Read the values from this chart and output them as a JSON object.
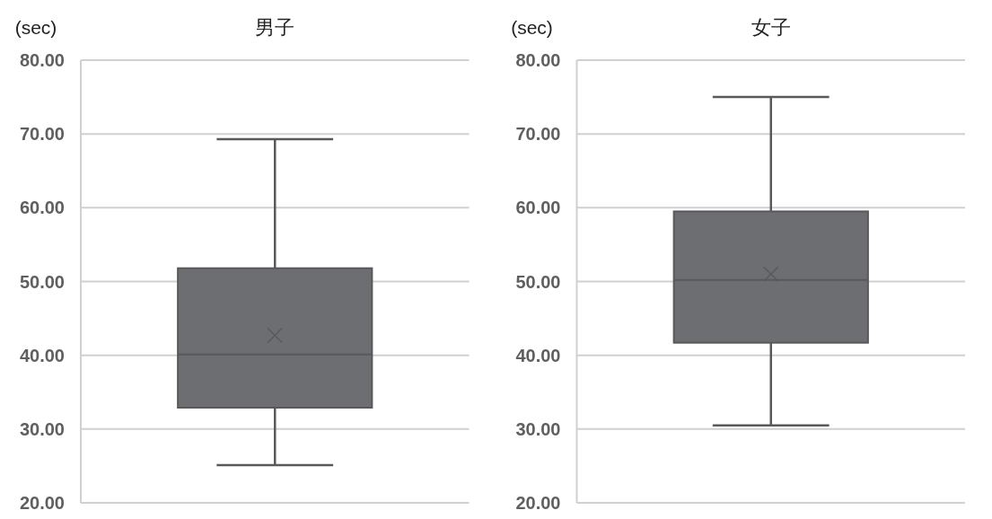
{
  "chart_data": [
    {
      "type": "box",
      "title": "男子",
      "ylabel": "(sec)",
      "categories": [
        null
      ],
      "color": "#6d6e71",
      "grid": "y",
      "ylim": [
        20,
        80
      ],
      "yticks": [
        {
          "value": 20,
          "label": "20.00"
        },
        {
          "value": 30,
          "label": "30.00"
        },
        {
          "value": 40,
          "label": "40.00"
        },
        {
          "value": 50,
          "label": "50.00"
        },
        {
          "value": 60,
          "label": "60.00"
        },
        {
          "value": 70,
          "label": "70.00"
        },
        {
          "value": 80,
          "label": "80.00"
        }
      ],
      "boxes": [
        {
          "low": 25.1,
          "q1": 32.9,
          "median": 40.1,
          "q3": 51.8,
          "high": 69.3,
          "mean": 42.7
        }
      ]
    },
    {
      "type": "box",
      "title": "女子",
      "ylabel": "(sec)",
      "categories": [
        null
      ],
      "color": "#6d6e71",
      "grid": "y",
      "ylim": [
        20,
        80
      ],
      "yticks": [
        {
          "value": 20,
          "label": "20.00"
        },
        {
          "value": 30,
          "label": "30.00"
        },
        {
          "value": 40,
          "label": "40.00"
        },
        {
          "value": 50,
          "label": "50.00"
        },
        {
          "value": 60,
          "label": "60.00"
        },
        {
          "value": 70,
          "label": "70.00"
        },
        {
          "value": 80,
          "label": "80.00"
        }
      ],
      "boxes": [
        {
          "low": 30.5,
          "q1": 41.7,
          "median": 50.2,
          "q3": 59.5,
          "high": 75.0,
          "mean": 51.0
        }
      ]
    }
  ]
}
